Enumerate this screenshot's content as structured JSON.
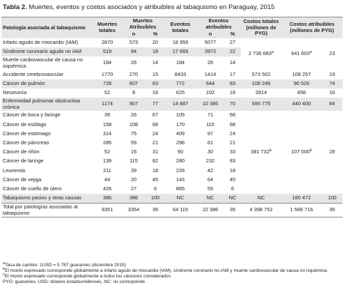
{
  "title": {
    "label": "Tabla 2.",
    "text": "Muertes, eventos y costos asociados y atribuibles al tabaquismo en Paraguay, 2015"
  },
  "table": {
    "header": {
      "pathology": "Patología asociada al tabaquismo",
      "deaths_total": "Muertes totales",
      "deaths_attr": "Muertes Atribuibles",
      "events_total": "Eventos totales",
      "events_attr": "Eventos atribuibles",
      "costs_total": "Costos totales (millones de PYG)",
      "costs_attr": "Costos atribuibles (millones de PYG)",
      "sub": [
        "n",
        "%",
        "n",
        "%"
      ]
    },
    "rows": [
      {
        "name": "Infarto agudo de miocardio (IAM)",
        "cells": [
          "2870",
          "573",
          "20",
          "18 959",
          "5077",
          "27"
        ],
        "costs": [
          {
            "text": "2 736 683",
            "sup": "a"
          },
          {
            "text": "641 603",
            "sup": "a"
          },
          "23"
        ]
      },
      {
        "name": "Síndrome coronario agudo no IAM",
        "cells": [
          "519",
          "94",
          "18",
          "17 669",
          "3972",
          "22"
        ]
      },
      {
        "name": "Muerte cardiovascular de causa no isquémica",
        "cells": [
          "184",
          "26",
          "14",
          "184",
          "26",
          "14"
        ]
      },
      {
        "name": "Accidente cerebrovascular",
        "cells": [
          "1770",
          "270",
          "15",
          "8433",
          "1414",
          "17"
        ],
        "costs": [
          "573 502",
          "108 257",
          "19"
        ]
      },
      {
        "name": "Cáncer de pulmón",
        "cells": [
          "728",
          "607",
          "83",
          "772",
          "644",
          "83"
        ],
        "costs": [
          "108 246",
          "90 526",
          "74"
        ]
      },
      {
        "name": "Neumonía",
        "cells": [
          "52",
          "8",
          "16",
          "625",
          "102",
          "16"
        ],
        "costs": [
          "2814",
          "458",
          "16"
        ]
      },
      {
        "name": "Enfermedad pulmonar obstructiva crónica",
        "cells": [
          "1174",
          "907",
          "77",
          "14 887",
          "10 385",
          "70"
        ],
        "costs": [
          "595 775",
          "440 400",
          "84"
        ]
      },
      {
        "name": "Cáncer de boca y faringe",
        "cells": [
          "39",
          "26",
          "67",
          "105",
          "71",
          "68"
        ],
        "costs": [
          {
            "text": "381 732",
            "sup": "b"
          },
          {
            "text": "107 000",
            "sup": "b"
          },
          "28"
        ]
      },
      {
        "name": "Cáncer de esófago",
        "cells": [
          "158",
          "108",
          "68",
          "170",
          "115",
          "68"
        ]
      },
      {
        "name": "Cáncer de estómago",
        "cells": [
          "314",
          "75",
          "24",
          "409",
          "97",
          "24"
        ]
      },
      {
        "name": "Cáncer de páncreas",
        "cells": [
          "285",
          "59",
          "21",
          "296",
          "61",
          "21"
        ]
      },
      {
        "name": "Cáncer de riñón",
        "cells": [
          "52",
          "16",
          "31",
          "90",
          "30",
          "33"
        ]
      },
      {
        "name": "Cáncer de laringe",
        "cells": [
          "139",
          "115",
          "82",
          "280",
          "232",
          "83"
        ]
      },
      {
        "name": "Leucemia",
        "cells": [
          "211",
          "39",
          "18",
          "228",
          "42",
          "18"
        ]
      },
      {
        "name": "Cáncer de vejiga",
        "cells": [
          "44",
          "20",
          "45",
          "143",
          "64",
          "45"
        ]
      },
      {
        "name": "Cáncer de cuello de útero",
        "cells": [
          "426",
          "27",
          "6",
          "865",
          "55",
          "6"
        ]
      },
      {
        "name": "Tabaquismo pasivo y otras causas",
        "cells": [
          "386",
          "386",
          "100",
          "NC",
          "NC",
          "NC"
        ],
        "costs": [
          "NC",
          "180 472",
          "100"
        ]
      },
      {
        "name": "Total por patologías asociadas al tabaquismo",
        "cells": [
          "9351",
          "3354",
          "36",
          "64 115",
          "22 386",
          "35"
        ],
        "costs": [
          "4 398 752",
          "1 568 716",
          "36"
        ]
      }
    ]
  },
  "footnotes": [
    {
      "sym": "a",
      "text": "Tasa de cambio: 1USD = 5 787 guaraníes (diciembre 2015)"
    },
    {
      "sym": "b",
      "text": "El monto expresado corresponde globalmente a infarto agudo de miocardio (IAM), síndrome coronario no IAM y muerte cardiovascular de causa no isquémica"
    },
    {
      "sym": "c",
      "text": "El monto expresado corresponde globalmente a todos los cánceres considerados"
    },
    {
      "text": "PYG: guaraníes, USD: dólares estadounidenses, NC: no corresponde"
    }
  ]
}
